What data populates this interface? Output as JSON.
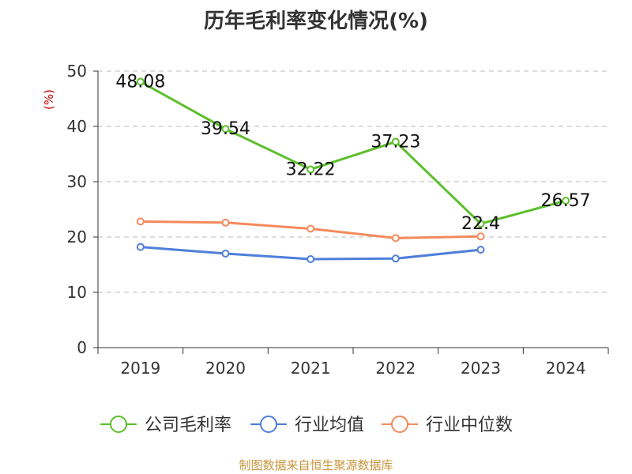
{
  "title": "历年毛利率变化情况(%)",
  "source": "制图数据来自恒生聚源数据库",
  "chart_data": {
    "type": "line",
    "title": "历年毛利率变化情况(%)",
    "ylabel": "(%)",
    "xlabel": "",
    "categories": [
      "2019",
      "2020",
      "2021",
      "2022",
      "2023",
      "2024"
    ],
    "ylim": [
      0,
      50
    ],
    "yticks": [
      0,
      10,
      20,
      30,
      40,
      50
    ],
    "grid": true,
    "legend_position": "bottom",
    "series": [
      {
        "name": "公司毛利率",
        "color": "#5cbf2a",
        "values": [
          48.08,
          39.54,
          32.22,
          37.23,
          22.4,
          26.57
        ],
        "labels": [
          "48.08",
          "39.54",
          "32.22",
          "37.23",
          "22.4",
          "26.57"
        ]
      },
      {
        "name": "行业均值",
        "color": "#4e7fd9",
        "values": [
          18.2,
          17.0,
          16.0,
          16.1,
          17.7,
          null
        ]
      },
      {
        "name": "行业中位数",
        "color": "#f58a5b",
        "values": [
          22.8,
          22.6,
          21.5,
          19.8,
          20.1,
          null
        ]
      }
    ]
  }
}
